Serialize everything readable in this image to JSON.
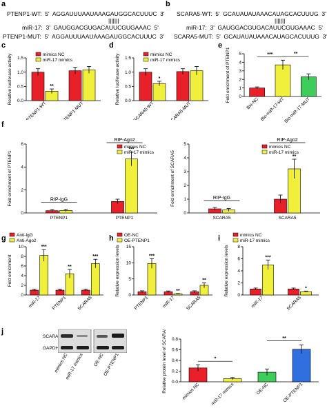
{
  "colors": {
    "red": "#e8202a",
    "yellow": "#f0f03c",
    "green": "#3ecc5a",
    "sig": "#000000"
  },
  "panel_labels": {
    "a": "a",
    "b": "b",
    "c": "c",
    "d": "d",
    "e": "e",
    "f": "f",
    "g": "g",
    "h": "h",
    "i": "i",
    "j": "j"
  },
  "seq_a": {
    "wt": "PTENP1-WT:  5'  AGGAUUUAAUAAAGAUGGCACUUUC  3'",
    "pipes": "|||||||",
    "mir": "miR-17:  3'  GAUGGACGUGACAUUCGUGAAAC  5'",
    "mut": "PTENP1-MUT:  5'  AGGAUUUAAUAAAGAUGGCACUUUC  3'"
  },
  "seq_b": {
    "wt": "SCARA5-WT:  5'  GCAUAUAUAAACAUAGCACUUUG  3'",
    "pipes": "|||||||",
    "mir": "miR-17:  3'  GAUGGACGUGACAUUCGUGAAAC  5'",
    "mut": "SCARA5-MUT:  5'  GCAUAUAUAAACAUAGCACUUUG  3'"
  },
  "blot": {
    "rows": [
      "SCARA5",
      "GAPDH"
    ],
    "lanes": [
      "mimics NC",
      "miR-17 mimics",
      "OE-NC",
      "OE-PTENP1"
    ]
  },
  "chart_data": [
    {
      "id": "c",
      "type": "bar",
      "ylabel": "Relative luciferase activity",
      "ylim": [
        0,
        1.5
      ],
      "yticks": [
        "0.0",
        "0.5",
        "1.0",
        "1.5"
      ],
      "categories": [
        "PTENP1-WT",
        "PTENP1-MUT"
      ],
      "series": [
        {
          "name": "mimics NC",
          "color": "red",
          "values": [
            1.0,
            1.05
          ],
          "err": [
            0.12,
            0.12
          ]
        },
        {
          "name": "miR-17 mimics",
          "color": "yellow",
          "values": [
            0.33,
            1.08
          ],
          "err": [
            0.08,
            0.12
          ]
        }
      ],
      "sig": [
        {
          "cat": 0,
          "s": 1,
          "text": "**"
        }
      ],
      "legend": [
        "mimics NC",
        "miR-17 mimics"
      ]
    },
    {
      "id": "d",
      "type": "bar",
      "ylabel": "Relative luciferase activity",
      "ylim": [
        0,
        1.5
      ],
      "yticks": [
        "0.0",
        "0.5",
        "1.0",
        "1.5"
      ],
      "categories": [
        "SCARA5-WT",
        "SCARA5-MUT"
      ],
      "series": [
        {
          "name": "mimics NC",
          "color": "red",
          "values": [
            1.0,
            1.02
          ],
          "err": [
            0.12,
            0.1
          ]
        },
        {
          "name": "miR-17 mimics",
          "color": "yellow",
          "values": [
            0.6,
            1.05
          ],
          "err": [
            0.08,
            0.15
          ]
        }
      ],
      "sig": [
        {
          "cat": 0,
          "s": 1,
          "text": "*"
        }
      ],
      "legend": [
        "mimics NC",
        "miR-17 mimics"
      ]
    },
    {
      "id": "e",
      "type": "bar",
      "ylabel": "Fold enrichment of PTENP1",
      "ylim": [
        0,
        5
      ],
      "yticks": [
        "0",
        "1",
        "2",
        "3",
        "4",
        "5"
      ],
      "categories": [
        "Bio-NC",
        "Bio-miR-17-WT",
        "Bio-miR-17-MUT"
      ],
      "single": [
        {
          "color": "red",
          "value": 1.0,
          "err": 0.12
        },
        {
          "color": "yellow",
          "value": 3.7,
          "err": 0.55
        },
        {
          "color": "green",
          "value": 2.3,
          "err": 0.35
        }
      ],
      "brackets": [
        {
          "from": 0,
          "to": 1,
          "text": "***"
        },
        {
          "from": 1,
          "to": 2,
          "text": "**"
        }
      ]
    },
    {
      "id": "f1",
      "type": "bar",
      "ylabel": "Fold enrichment of PTENP1",
      "ylim": [
        0,
        6
      ],
      "yticks": [
        "0",
        "2",
        "4",
        "6"
      ],
      "categories": [
        "PTENP1",
        "PTENP1"
      ],
      "series": [
        {
          "name": "mimics NC",
          "color": "red",
          "values": [
            0.2,
            1.0
          ],
          "err": [
            0.1,
            0.2
          ]
        },
        {
          "name": "miR-17 mimics",
          "color": "yellow",
          "values": [
            0.22,
            4.7
          ],
          "err": [
            0.1,
            0.6
          ]
        }
      ],
      "sig": [
        {
          "cat": 1,
          "s": 1,
          "text": "***"
        }
      ],
      "groups": [
        "RIP-IgG",
        "RIP-Ago2"
      ],
      "legend": [
        "mimics NC",
        "miR-17 mimics"
      ]
    },
    {
      "id": "f2",
      "type": "bar",
      "ylabel": "Fold enrichment of SCARA5",
      "ylim": [
        0,
        5
      ],
      "yticks": [
        "0",
        "1",
        "2",
        "3",
        "4",
        "5"
      ],
      "categories": [
        "SCARA5",
        "SCARA5"
      ],
      "series": [
        {
          "name": "mimics NC",
          "color": "red",
          "values": [
            0.3,
            1.0
          ],
          "err": [
            0.1,
            0.3
          ]
        },
        {
          "name": "miR-17 mimics",
          "color": "yellow",
          "values": [
            0.22,
            3.2
          ],
          "err": [
            0.1,
            0.7
          ]
        }
      ],
      "sig": [
        {
          "cat": 1,
          "s": 1,
          "text": "**"
        }
      ],
      "groups": [
        "RIP-IgG",
        "RIP-Ago2"
      ],
      "legend": [
        "mimics NC",
        "miR-17 mimics"
      ]
    },
    {
      "id": "g",
      "type": "bar",
      "ylabel": "Fold enrichment",
      "ylim": [
        0,
        10
      ],
      "yticks": [
        "0",
        "2",
        "4",
        "6",
        "8",
        "10"
      ],
      "categories": [
        "miR-17",
        "PTENP1",
        "SCARA5"
      ],
      "series": [
        {
          "name": "Anti-IgG",
          "color": "red",
          "values": [
            1.0,
            1.0,
            1.0
          ],
          "err": [
            0.2,
            0.2,
            0.2
          ]
        },
        {
          "name": "Anti-Ago2",
          "color": "yellow",
          "values": [
            8.2,
            4.4,
            6.5
          ],
          "err": [
            1.2,
            0.9,
            0.9
          ]
        }
      ],
      "sig": [
        {
          "cat": 0,
          "s": 1,
          "text": "***"
        },
        {
          "cat": 1,
          "s": 1,
          "text": "**"
        },
        {
          "cat": 2,
          "s": 1,
          "text": "***"
        }
      ],
      "legend": [
        "Anti-IgG",
        "Anti-Ago2"
      ]
    },
    {
      "id": "h",
      "type": "bar",
      "ylabel": "Relative expression levels",
      "ylim": [
        0,
        15
      ],
      "yticks": [
        "0",
        "5",
        "10",
        "15"
      ],
      "categories": [
        "PTENP1",
        "miR-17",
        "SCARA5"
      ],
      "series": [
        {
          "name": "OE-NC",
          "color": "red",
          "values": [
            1.0,
            1.0,
            1.0
          ],
          "err": [
            0.3,
            0.25,
            0.3
          ]
        },
        {
          "name": "OE-PTENP1",
          "color": "yellow",
          "values": [
            9.8,
            0.35,
            3.0
          ],
          "err": [
            1.5,
            0.1,
            0.8
          ]
        }
      ],
      "sig": [
        {
          "cat": 0,
          "s": 1,
          "text": "***"
        },
        {
          "cat": 1,
          "s": 1,
          "text": "**"
        },
        {
          "cat": 2,
          "s": 1,
          "text": "**"
        }
      ],
      "legend": [
        "OE-NC",
        "OE-PTENP1"
      ]
    },
    {
      "id": "i",
      "type": "bar",
      "ylabel": "Relative expression levels",
      "ylim": [
        0,
        8
      ],
      "yticks": [
        "0",
        "2",
        "4",
        "6",
        "8"
      ],
      "categories": [
        "miR-17",
        "SCARA5"
      ],
      "series": [
        {
          "name": "mimics NC",
          "color": "red",
          "values": [
            1.0,
            1.0
          ],
          "err": [
            0.15,
            0.15
          ]
        },
        {
          "name": "miR-17 mimics",
          "color": "yellow",
          "values": [
            5.0,
            0.55
          ],
          "err": [
            0.8,
            0.1
          ]
        }
      ],
      "sig": [
        {
          "cat": 0,
          "s": 1,
          "text": "***"
        },
        {
          "cat": 1,
          "s": 1,
          "text": "*"
        }
      ],
      "legend": [
        "mimics NC",
        "miR-17 mimics"
      ]
    },
    {
      "id": "j",
      "type": "bar",
      "ylabel": "Relative protein level of SCARA5",
      "ylim": [
        0,
        0.8
      ],
      "yticks": [
        "0.0",
        "0.2",
        "0.4",
        "0.6",
        "0.8"
      ],
      "categories": [
        "mimics NC",
        "miR-17 mimics",
        "OE-NC",
        "OE-PTENP1"
      ],
      "single": [
        {
          "color": "red",
          "value": 0.26,
          "err": 0.06
        },
        {
          "color": "yellow",
          "value": 0.06,
          "err": 0.02
        },
        {
          "color": "green",
          "value": 0.18,
          "err": 0.06
        },
        {
          "color": "blue",
          "value": 0.61,
          "err": 0.08
        }
      ],
      "brackets": [
        {
          "from": 0,
          "to": 1,
          "text": "*"
        },
        {
          "from": 2,
          "to": 3,
          "text": "**"
        }
      ]
    }
  ]
}
